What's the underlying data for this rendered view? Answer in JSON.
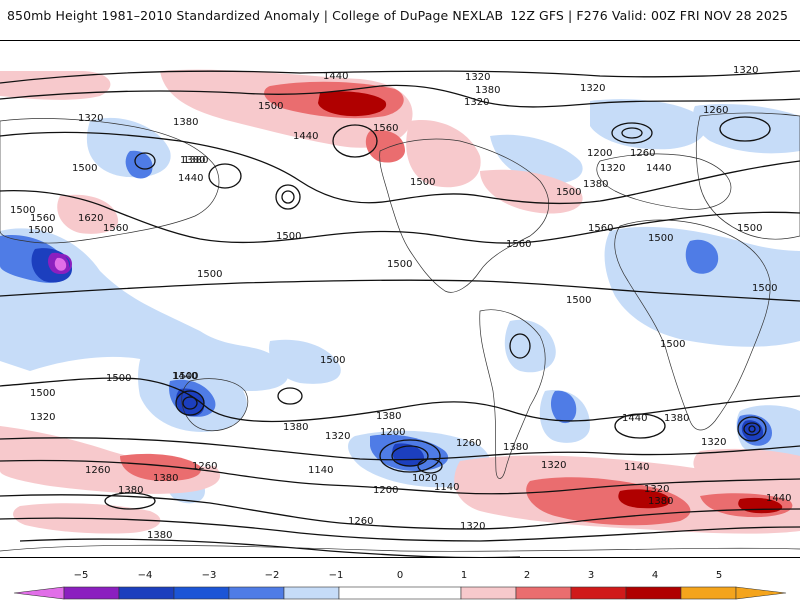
{
  "header": {
    "title": "850mb Height 1981–2010 Standardized Anomaly | College of DuPage NEXLAB",
    "run_info": "12Z GFS | F276 Valid: 00Z FRI NOV 28 2025"
  },
  "map": {
    "contour_labels": [
      "1440",
      "1380",
      "1320",
      "1320",
      "1260",
      "1320",
      "1500",
      "1440",
      "1560",
      "1320",
      "1380",
      "1500",
      "1500",
      "1380",
      "1200",
      "1260",
      "1320",
      "1380",
      "1440",
      "1500",
      "1380",
      "1440",
      "1500",
      "1500",
      "1560",
      "1620",
      "1500",
      "1560",
      "1500",
      "1560",
      "1500",
      "1500",
      "1500",
      "1500",
      "1500",
      "1500",
      "1500",
      "1500",
      "1560",
      "1500",
      "1500",
      "1440",
      "1380",
      "1320",
      "1380",
      "1200",
      "1260",
      "1320",
      "1380",
      "1140",
      "1020",
      "1140",
      "1200",
      "1260",
      "1320",
      "1260",
      "1380",
      "1380",
      "1260",
      "1320",
      "1380",
      "1140",
      "1320",
      "1380",
      "1440",
      "1320",
      "1380",
      "1320",
      "1440"
    ],
    "colors": {
      "neg5": "#e16ee8",
      "neg4": "#8b1fbf",
      "neg3": "#1c3fbe",
      "neg2": "#4f7ce6",
      "neg1": "#c6dcf8",
      "zero": "#ffffff",
      "pos1": "#f7c9cc",
      "pos2": "#ea6d6f",
      "pos3": "#d01a1a",
      "pos4": "#b00000",
      "pos5": "#f4a41c"
    }
  },
  "colorbar": {
    "ticks": [
      "−5",
      "−4",
      "−3",
      "−2",
      "−1",
      "0",
      "1",
      "2",
      "3",
      "4",
      "5"
    ]
  }
}
